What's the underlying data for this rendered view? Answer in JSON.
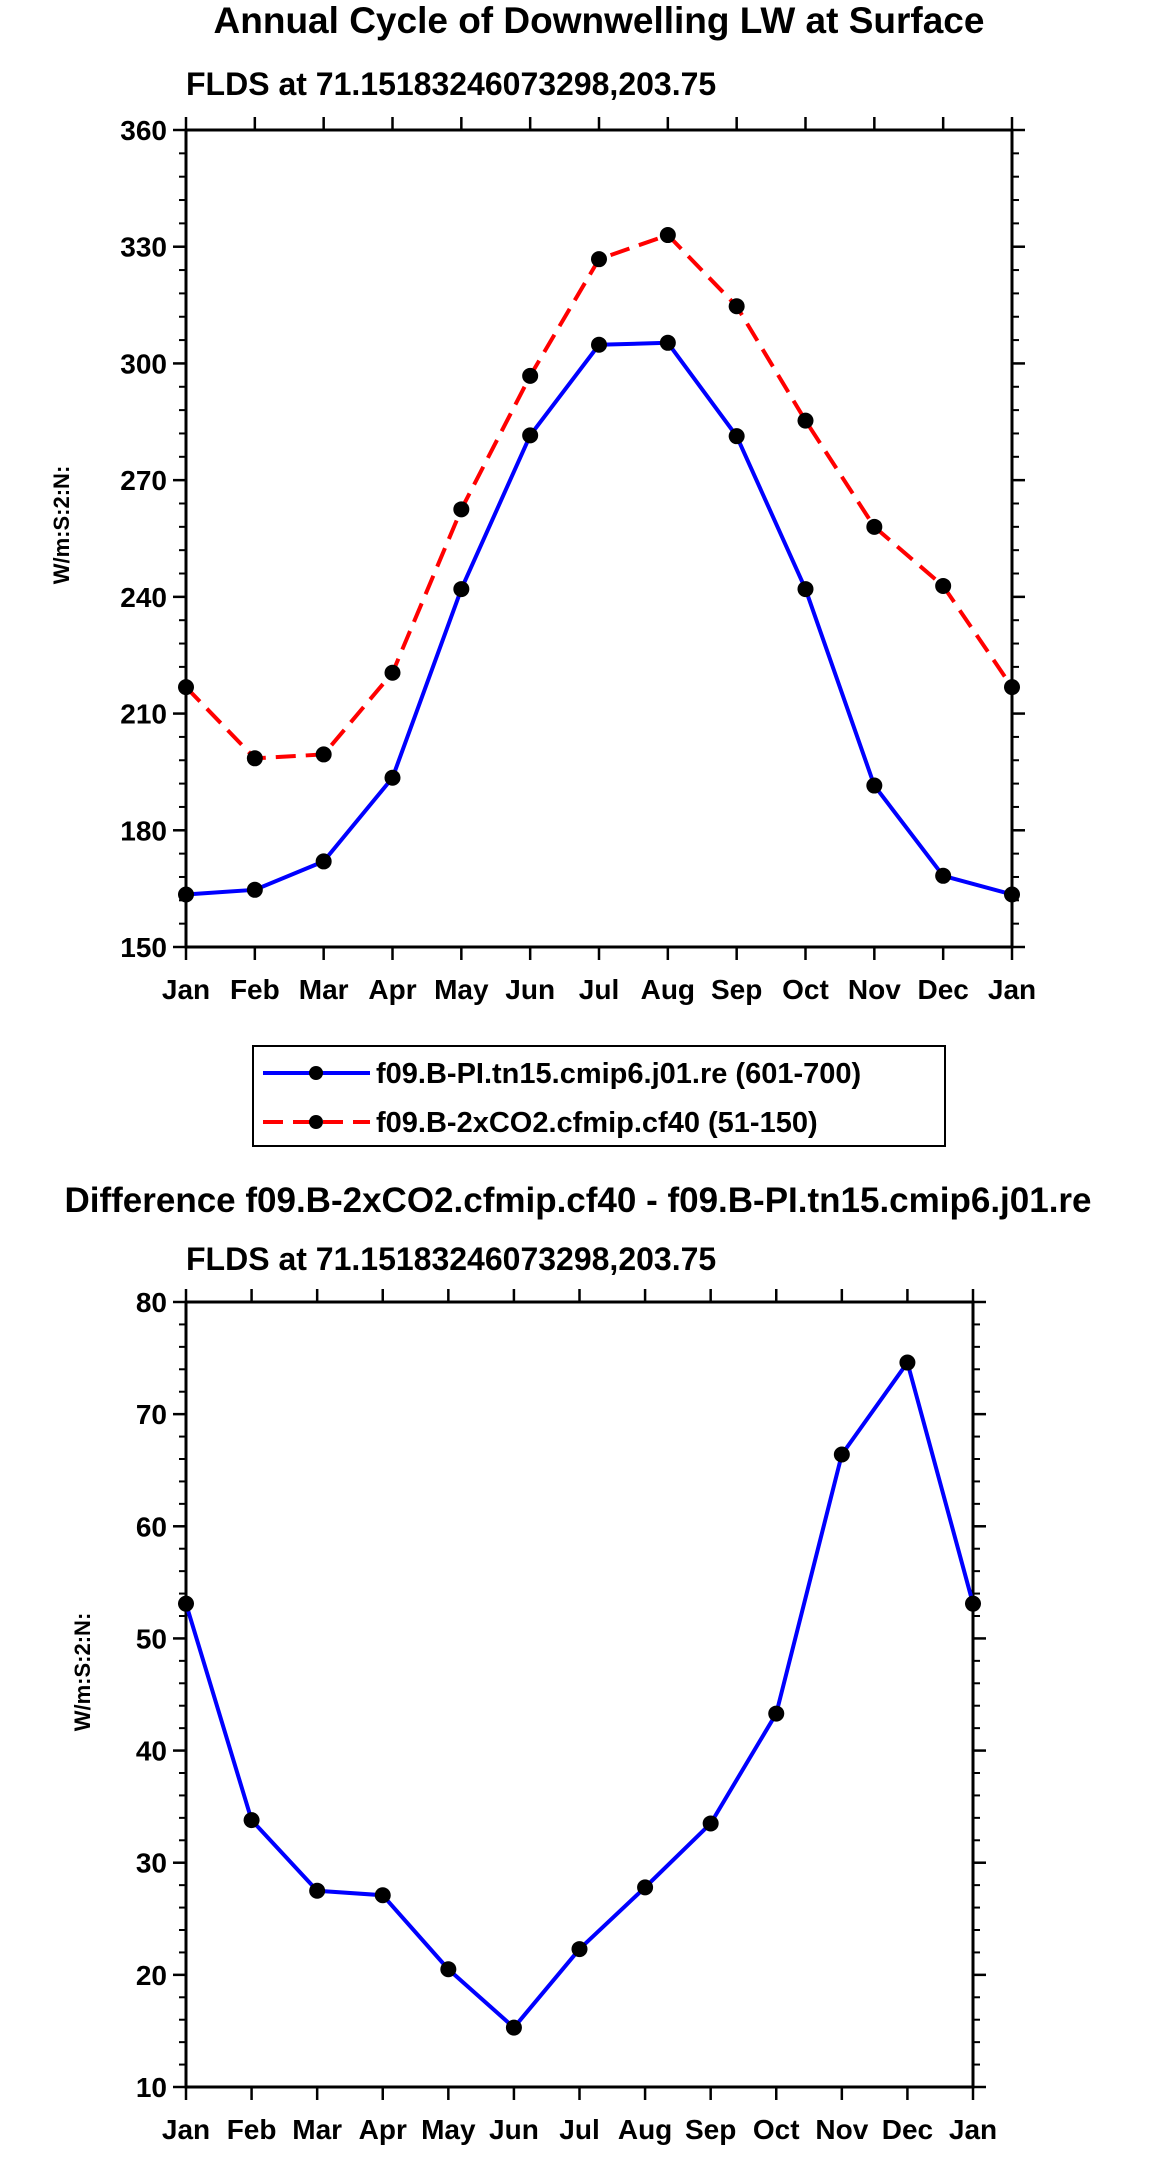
{
  "chart_data": [
    {
      "type": "line",
      "title": "Annual Cycle of Downwelling LW at Surface",
      "subtitle": "FLDS at 71.15183246073298,203.75",
      "ylabel": "W/m:S:2:N:",
      "xlabel": "",
      "categories": [
        "Jan",
        "Feb",
        "Mar",
        "Apr",
        "May",
        "Jun",
        "Jul",
        "Aug",
        "Sep",
        "Oct",
        "Nov",
        "Dec",
        "Jan"
      ],
      "ylim": [
        150,
        360
      ],
      "yticks": [
        150,
        180,
        210,
        240,
        270,
        300,
        330,
        360
      ],
      "series": [
        {
          "name": "f09.B-PI.tn15.cmip6.j01.re (601-700)",
          "color": "#0000ff",
          "dash": "solid",
          "values": [
            163.5,
            164.7,
            172.0,
            193.5,
            242.0,
            281.5,
            304.8,
            305.3,
            281.3,
            242.0,
            191.5,
            168.3,
            163.5
          ]
        },
        {
          "name": "f09.B-2xCO2.cfmip.cf40 (51-150)",
          "color": "#ff0000",
          "dash": "dashed",
          "values": [
            216.8,
            198.5,
            199.5,
            220.5,
            262.5,
            296.8,
            326.8,
            333.0,
            314.7,
            285.3,
            258.0,
            242.8,
            216.8
          ]
        }
      ],
      "legend_position": "bottom"
    },
    {
      "type": "line",
      "title": "Difference f09.B-2xCO2.cfmip.cf40 - f09.B-PI.tn15.cmip6.j01.re",
      "subtitle": "FLDS at 71.15183246073298,203.75",
      "ylabel": "W/m:S:2:N:",
      "xlabel": "",
      "categories": [
        "Jan",
        "Feb",
        "Mar",
        "Apr",
        "May",
        "Jun",
        "Jul",
        "Aug",
        "Sep",
        "Oct",
        "Nov",
        "Dec",
        "Jan"
      ],
      "ylim": [
        10,
        80
      ],
      "yticks": [
        10,
        20,
        30,
        40,
        50,
        60,
        70,
        80
      ],
      "series": [
        {
          "name": "Difference",
          "color": "#0000ff",
          "dash": "solid",
          "values": [
            53.1,
            33.8,
            27.5,
            27.1,
            20.5,
            15.3,
            22.3,
            27.8,
            33.5,
            43.3,
            66.4,
            74.6,
            53.1
          ]
        }
      ]
    }
  ]
}
